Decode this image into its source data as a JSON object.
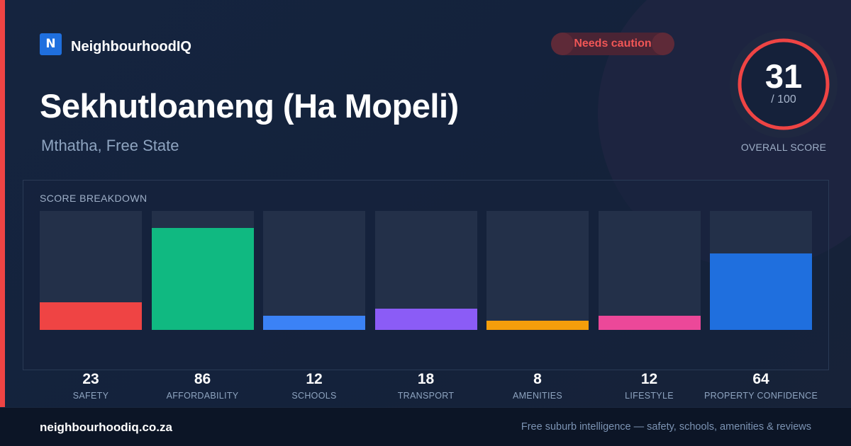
{
  "brand": {
    "logo_letter": "N",
    "name": "NeighbourhoodIQ"
  },
  "status_badge": {
    "label": "Needs caution",
    "color": "#ef4444"
  },
  "suburb": {
    "name": "Sekhutloaneng (Ha Mopeli)",
    "location": "Mthatha, Free State"
  },
  "overall_score": {
    "value": "31",
    "max_label": "/ 100",
    "label": "OVERALL SCORE",
    "fraction": 0.31,
    "ring_color": "#ef4444"
  },
  "breakdown": {
    "title": "SCORE BREAKDOWN",
    "max": 100,
    "items": [
      {
        "label": "SAFETY",
        "value": 23,
        "color": "#ef4444"
      },
      {
        "label": "AFFORDABILITY",
        "value": 86,
        "color": "#10b981"
      },
      {
        "label": "SCHOOLS",
        "value": 12,
        "color": "#3b82f6"
      },
      {
        "label": "TRANSPORT",
        "value": 18,
        "color": "#8b5cf6"
      },
      {
        "label": "AMENITIES",
        "value": 8,
        "color": "#f59e0b"
      },
      {
        "label": "LIFESTYLE",
        "value": 12,
        "color": "#ec4899"
      },
      {
        "label": "PROPERTY CONFIDENCE",
        "value": 64,
        "color": "#1f6fde"
      }
    ]
  },
  "footer": {
    "domain": "neighbourhoodiq.co.za",
    "tagline": "Free suburb intelligence — safety, schools, amenities & reviews"
  }
}
